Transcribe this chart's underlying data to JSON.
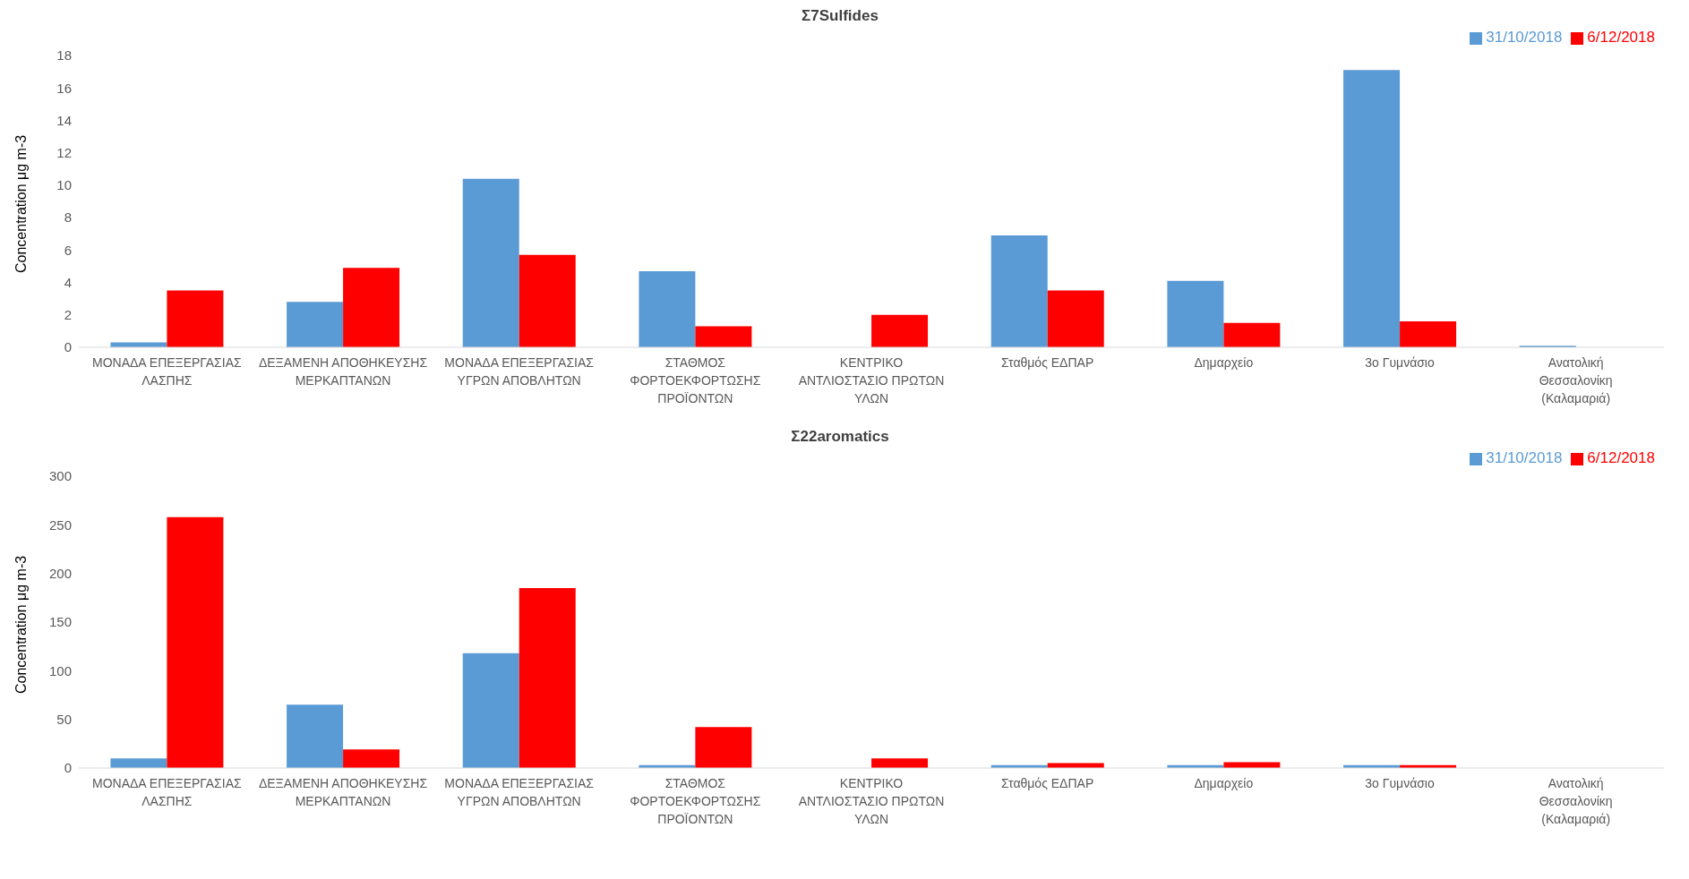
{
  "chart_data": [
    {
      "type": "bar",
      "title": "Σ7Sulfides",
      "ylabel": "Concentration μg m-3",
      "categories": [
        "ΜΟΝΑΔΑ ΕΠΕΞΕΡΓΑΣΙΑΣ ΛΑΣΠΗΣ",
        "ΔΕΞΑΜΕΝΗ ΑΠΟΘΗΚΕΥΣΗΣ ΜΕΡΚΑΠΤΑΝΩΝ",
        "ΜΟΝΑΔΑ ΕΠΕΞΕΡΓΑΣΙΑΣ ΥΓΡΩΝ ΑΠΟΒΛΗΤΩΝ",
        "ΣΤΑΘΜΟΣ ΦΟΡΤΟΕΚΦΟΡΤΩΣΗΣ ΠΡΟΪΟΝΤΩΝ",
        "ΚΕΝΤΡΙΚΟ ΑΝΤΛΙΟΣΤΑΣΙΟ ΠΡΩΤΩΝ ΥΛΩΝ",
        "Σταθμός ΕΔΠΑΡ",
        "Δημαρχείο",
        "3ο Γυμνάσιο",
        "Ανατολική Θεσσαλονίκη (Καλαμαριά)"
      ],
      "series": [
        {
          "name": "31/10/2018",
          "color": "#5b9bd5",
          "values": [
            0.3,
            2.8,
            10.4,
            4.7,
            0,
            6.9,
            4.1,
            17.1,
            0.1
          ]
        },
        {
          "name": "6/12/2018",
          "color": "#ff0000",
          "values": [
            3.5,
            4.9,
            5.7,
            1.3,
            2.0,
            3.5,
            1.5,
            1.6,
            0
          ]
        }
      ],
      "ylim": [
        0,
        18
      ],
      "yticks": [
        0,
        2,
        4,
        6,
        8,
        10,
        12,
        14,
        16,
        18
      ],
      "grid": false,
      "legend": "top right"
    },
    {
      "type": "bar",
      "title": "Σ22aromatics",
      "ylabel": "Concentration μg m-3",
      "categories": [
        "ΜΟΝΑΔΑ ΕΠΕΞΕΡΓΑΣΙΑΣ ΛΑΣΠΗΣ",
        "ΔΕΞΑΜΕΝΗ ΑΠΟΘΗΚΕΥΣΗΣ ΜΕΡΚΑΠΤΑΝΩΝ",
        "ΜΟΝΑΔΑ ΕΠΕΞΕΡΓΑΣΙΑΣ ΥΓΡΩΝ ΑΠΟΒΛΗΤΩΝ",
        "ΣΤΑΘΜΟΣ ΦΟΡΤΟΕΚΦΟΡΤΩΣΗΣ ΠΡΟΪΟΝΤΩΝ",
        "ΚΕΝΤΡΙΚΟ ΑΝΤΛΙΟΣΤΑΣΙΟ ΠΡΩΤΩΝ ΥΛΩΝ",
        "Σταθμός ΕΔΠΑΡ",
        "Δημαρχείο",
        "3ο Γυμνάσιο",
        "Ανατολική Θεσσαλονίκη (Καλαμαριά)"
      ],
      "series": [
        {
          "name": "31/10/2018",
          "color": "#5b9bd5",
          "values": [
            10,
            65,
            118,
            3,
            0,
            3,
            3,
            3,
            null
          ]
        },
        {
          "name": "6/12/2018",
          "color": "#ff0000",
          "values": [
            258,
            19,
            185,
            42,
            10,
            5,
            6,
            3,
            0
          ]
        }
      ],
      "ylim": [
        0,
        300
      ],
      "yticks": [
        0,
        50,
        100,
        150,
        200,
        250,
        300
      ],
      "grid": false,
      "legend": "top right"
    }
  ]
}
